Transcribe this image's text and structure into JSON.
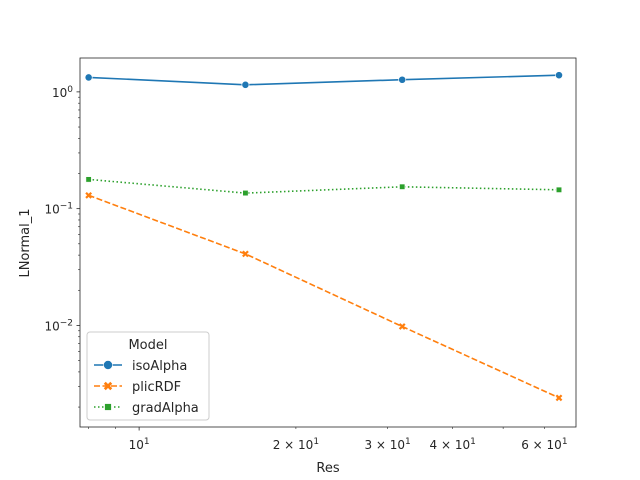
{
  "chart_data": {
    "type": "line",
    "title": "",
    "xlabel": "Res",
    "ylabel": "LNormal_1",
    "xscale": "log",
    "yscale": "log",
    "xlim": [
      7.7,
      69
    ],
    "ylim": [
      0.00135,
      1.95
    ],
    "x": [
      8,
      16,
      32,
      64
    ],
    "series": [
      {
        "name": "isoAlpha",
        "values": [
          1.33,
          1.15,
          1.27,
          1.39
        ],
        "color": "#1f77b4",
        "marker": "circle",
        "line": "solid"
      },
      {
        "name": "plicRDF",
        "values": [
          0.13,
          0.041,
          0.0098,
          0.0024
        ],
        "color": "#ff7f0e",
        "marker": "x",
        "line": "dashed"
      },
      {
        "name": "gradAlpha",
        "values": [
          0.178,
          0.136,
          0.154,
          0.145
        ],
        "color": "#2ca02c",
        "marker": "square",
        "line": "dotted"
      }
    ],
    "x_ticks": [
      {
        "value": 10,
        "base": "10",
        "exp": "1"
      },
      {
        "value": 20,
        "base": "2 × 10",
        "exp": "1"
      },
      {
        "value": 30,
        "base": "3 × 10",
        "exp": "1"
      },
      {
        "value": 40,
        "base": "4 × 10",
        "exp": "1"
      },
      {
        "value": 60,
        "base": "6 × 10",
        "exp": "1"
      }
    ],
    "y_ticks": [
      {
        "value": 1,
        "base": "10",
        "exp": "0"
      },
      {
        "value": 0.1,
        "base": "10",
        "exp": "−1"
      },
      {
        "value": 0.01,
        "base": "10",
        "exp": "−2"
      }
    ],
    "legend": {
      "title": "Model",
      "position": "lower-left"
    },
    "grid": false
  }
}
